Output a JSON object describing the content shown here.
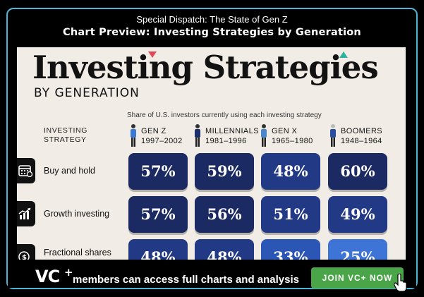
{
  "header": {
    "subtitle": "Special Dispatch: The State of Gen Z",
    "title": "Chart Preview: Investing Strategies by Generation"
  },
  "infographic": {
    "title": "Investing Strategies",
    "subtitle": "BY GENERATION",
    "caption": "Share of U.S. investors currently using each investing strategy",
    "strategy_header_line1": "INVESTING",
    "strategy_header_line2": "STRATEGY",
    "generations": [
      {
        "name": "GEN Z",
        "years": "1997–2002"
      },
      {
        "name": "MILLENNIALS",
        "years": "1981–1996"
      },
      {
        "name": "GEN X",
        "years": "1965–1980"
      },
      {
        "name": "BOOMERS",
        "years": "1948–1964"
      }
    ],
    "rows": [
      {
        "label": "Buy and hold",
        "icon": "calendar-icon",
        "values": [
          "57%",
          "59%",
          "48%",
          "60%"
        ]
      },
      {
        "label": "Growth investing",
        "icon": "growth-chart-icon",
        "values": [
          "57%",
          "56%",
          "51%",
          "49%"
        ]
      },
      {
        "label": "Fractional shares",
        "icon": "dollar-coin-icon",
        "values": [
          "48%",
          "48%",
          "33%",
          "25%"
        ]
      }
    ],
    "colors": {
      "dark_navy": "#1b2a63",
      "navy": "#223a85",
      "mid_blue": "#2c56b6",
      "light_blue": "#3d74d6",
      "background": "#f1ede6",
      "accent_red": "#e04a57",
      "accent_green": "#2bb3a0"
    }
  },
  "banner": {
    "logo": "VC",
    "logo_plus": "+",
    "text": "members can access full charts and analysis",
    "button_label": "JOIN VC+ NOW",
    "button_color": "#4aa548"
  }
}
